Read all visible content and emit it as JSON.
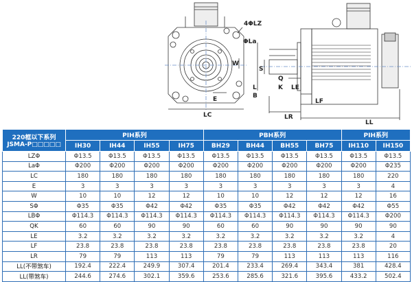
{
  "diagram_labels": {
    "lz": "4ΦLZ",
    "la": "ΦLa",
    "w": "W",
    "e": "E",
    "lc": "LC",
    "s": "S",
    "q": "Q",
    "k": "K",
    "l": "L",
    "b": "B",
    "le": "LE",
    "lf": "LF",
    "lr": "LR",
    "ll": "LL"
  },
  "table": {
    "corner": [
      "220框以下系列",
      "JSMA-P□□□□□"
    ],
    "groups": [
      {
        "label": "PIH系列",
        "span": 4
      },
      {
        "label": "PBH系列",
        "span": 4
      },
      {
        "label": "PIH系列",
        "span": 2
      }
    ],
    "models": [
      "IH30",
      "IH44",
      "IH55",
      "IH75",
      "BH29",
      "BH44",
      "BH55",
      "BH75",
      "IH110",
      "IH150"
    ],
    "rows": [
      {
        "label": "LZΦ",
        "values": [
          "Φ13.5",
          "Φ13.5",
          "Φ13.5",
          "Φ13.5",
          "Φ13.5",
          "Φ13.5",
          "Φ13.5",
          "Φ13.5",
          "Φ13.5",
          "Φ13.5"
        ]
      },
      {
        "label": "LaΦ",
        "values": [
          "Φ200",
          "Φ200",
          "Φ200",
          "Φ200",
          "Φ200",
          "Φ200",
          "Φ200",
          "Φ200",
          "Φ200",
          "Φ235"
        ]
      },
      {
        "label": "LC",
        "values": [
          "180",
          "180",
          "180",
          "180",
          "180",
          "180",
          "180",
          "180",
          "180",
          "220"
        ]
      },
      {
        "label": "E",
        "values": [
          "3",
          "3",
          "3",
          "3",
          "3",
          "3",
          "3",
          "3",
          "3",
          "4"
        ]
      },
      {
        "label": "W",
        "values": [
          "10",
          "10",
          "12",
          "12",
          "10",
          "10",
          "12",
          "12",
          "12",
          "16"
        ]
      },
      {
        "label": "SΦ",
        "values": [
          "Φ35",
          "Φ35",
          "Φ42",
          "Φ42",
          "Φ35",
          "Φ35",
          "Φ42",
          "Φ42",
          "Φ42",
          "Φ55"
        ]
      },
      {
        "label": "LBΦ",
        "values": [
          "Φ114.3",
          "Φ114.3",
          "Φ114.3",
          "Φ114.3",
          "Φ114.3",
          "Φ114.3",
          "Φ114.3",
          "Φ114.3",
          "Φ114.3",
          "Φ200"
        ]
      },
      {
        "label": "QK",
        "values": [
          "60",
          "60",
          "90",
          "90",
          "60",
          "60",
          "90",
          "90",
          "90",
          "90"
        ]
      },
      {
        "label": "LE",
        "values": [
          "3.2",
          "3.2",
          "3.2",
          "3.2",
          "3.2",
          "3.2",
          "3.2",
          "3.2",
          "3.2",
          "4"
        ]
      },
      {
        "label": "LF",
        "values": [
          "23.8",
          "23.8",
          "23.8",
          "23.8",
          "23.8",
          "23.8",
          "23.8",
          "23.8",
          "23.8",
          "20"
        ]
      },
      {
        "label": "LR",
        "values": [
          "79",
          "79",
          "113",
          "113",
          "79",
          "79",
          "113",
          "113",
          "113",
          "116"
        ]
      },
      {
        "label": "LL(不带煞车)",
        "values": [
          "192.4",
          "222.4",
          "249.9",
          "307.4",
          "201.4",
          "233.4",
          "269.4",
          "343.4",
          "381",
          "428.4"
        ]
      },
      {
        "label": "LL(带煞车)",
        "values": [
          "244.6",
          "274.6",
          "302.1",
          "359.6",
          "253.6",
          "285.6",
          "321.6",
          "395.6",
          "433.2",
          "502.4"
        ]
      }
    ]
  },
  "colors": {
    "header": "#1f6fbf",
    "border": "#2d6db5"
  }
}
